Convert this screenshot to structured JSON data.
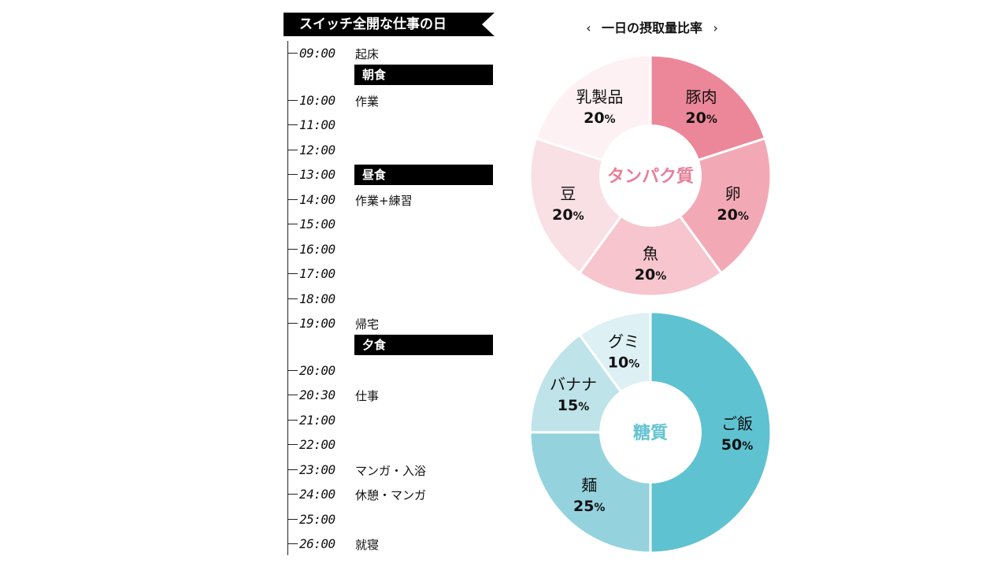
{
  "schedule": {
    "title": "スイッチ全開な仕事の日",
    "entries": [
      {
        "time": "09:00",
        "activity": "起床"
      },
      {
        "time": "10:00",
        "activity": "作業"
      },
      {
        "time": "11:00",
        "activity": ""
      },
      {
        "time": "12:00",
        "activity": ""
      },
      {
        "time": "13:00",
        "activity": ""
      },
      {
        "time": "14:00",
        "activity": "作業+練習"
      },
      {
        "time": "15:00",
        "activity": ""
      },
      {
        "time": "16:00",
        "activity": ""
      },
      {
        "time": "17:00",
        "activity": ""
      },
      {
        "time": "18:00",
        "activity": ""
      },
      {
        "time": "19:00",
        "activity": "帰宅"
      },
      {
        "time": "20:00",
        "activity": ""
      },
      {
        "time": "20:30",
        "activity": "仕事"
      },
      {
        "time": "21:00",
        "activity": ""
      },
      {
        "time": "22:00",
        "activity": ""
      },
      {
        "time": "23:00",
        "activity": "マンガ・入浴"
      },
      {
        "time": "24:00",
        "activity": "休憩・マンガ"
      },
      {
        "time": "25:00",
        "activity": ""
      },
      {
        "time": "26:00",
        "activity": "就寝"
      }
    ],
    "meals": [
      {
        "label": "朝食",
        "after": "09:00"
      },
      {
        "label": "昼食",
        "at": "13:00"
      },
      {
        "label": "夕食",
        "after": "19:00"
      }
    ]
  },
  "chart_header": {
    "title": "一日の摂取量比率",
    "prev_icon": "chevron-left-icon",
    "next_icon": "chevron-right-icon"
  },
  "chart_data": [
    {
      "type": "pie",
      "donut": true,
      "title": "タンパク質",
      "title_color": "#E87F98",
      "percent_suffix": "%",
      "slices": [
        {
          "label": "豚肉",
          "value": 20,
          "color": "#EC8799"
        },
        {
          "label": "卵",
          "value": 20,
          "color": "#F3A9B5"
        },
        {
          "label": "魚",
          "value": 20,
          "color": "#F6C5CE"
        },
        {
          "label": "豆",
          "value": 20,
          "color": "#F9E0E5"
        },
        {
          "label": "乳製品",
          "value": 20,
          "color": "#FDF1F3"
        }
      ]
    },
    {
      "type": "pie",
      "donut": true,
      "title": "糖質",
      "title_color": "#63C3D1",
      "percent_suffix": "%",
      "slices": [
        {
          "label": "ご飯",
          "value": 50,
          "color": "#5FC2D1"
        },
        {
          "label": "麺",
          "value": 25,
          "color": "#94D3DE"
        },
        {
          "label": "バナナ",
          "value": 15,
          "color": "#BEE3E9"
        },
        {
          "label": "グミ",
          "value": 10,
          "color": "#DDF0F3"
        }
      ]
    }
  ]
}
